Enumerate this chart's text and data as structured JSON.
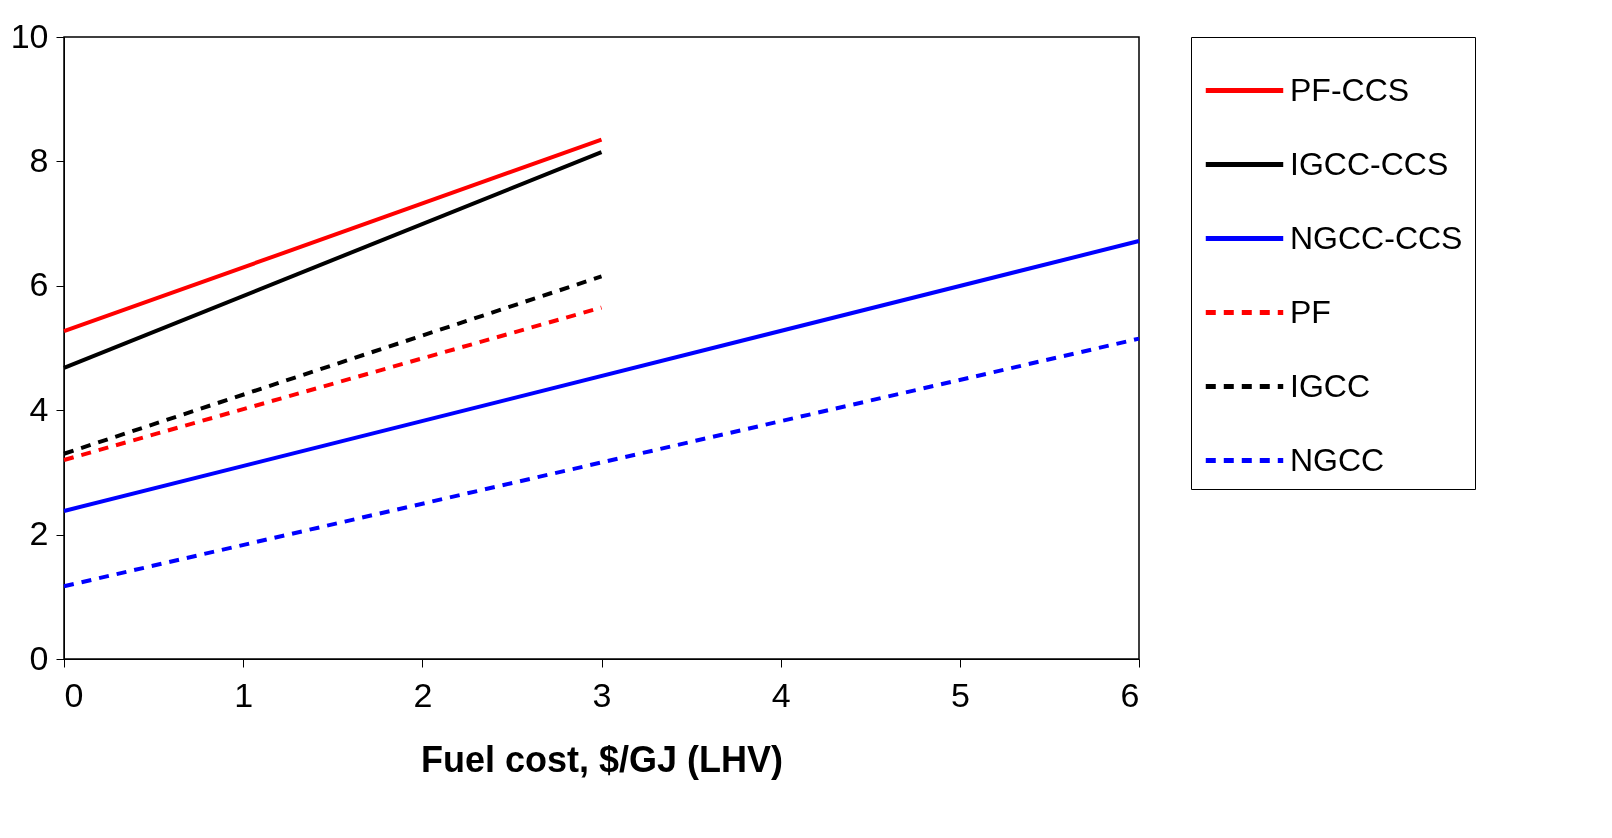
{
  "chart_data": {
    "type": "line",
    "xlabel": "Fuel cost, $/GJ (LHV)",
    "xlim": [
      0,
      6
    ],
    "xticks": [
      0,
      1,
      2,
      3,
      4,
      5,
      6
    ],
    "ylim": [
      0,
      10
    ],
    "yticks": [
      0,
      2,
      4,
      6,
      8,
      10
    ],
    "legend": "right",
    "grid": false,
    "series": [
      {
        "name": "PF-CCS",
        "color": "#ff0000",
        "line_style": "solid",
        "x": [
          0,
          3
        ],
        "values": [
          5.27,
          8.35
        ]
      },
      {
        "name": "IGCC-CCS",
        "color": "#000000",
        "line_style": "solid",
        "x": [
          0,
          3
        ],
        "values": [
          4.68,
          8.15
        ]
      },
      {
        "name": "NGCC-CCS",
        "color": "#0000ff",
        "line_style": "solid",
        "x": [
          0,
          6
        ],
        "values": [
          2.38,
          6.72
        ]
      },
      {
        "name": "PF",
        "color": "#ff0000",
        "line_style": "dashed",
        "x": [
          0,
          3
        ],
        "values": [
          3.2,
          5.65
        ]
      },
      {
        "name": "IGCC",
        "color": "#000000",
        "line_style": "dashed",
        "x": [
          0,
          3
        ],
        "values": [
          3.3,
          6.15
        ]
      },
      {
        "name": "NGCC",
        "color": "#0000ff",
        "line_style": "dashed",
        "x": [
          0,
          6
        ],
        "values": [
          1.17,
          5.15
        ]
      }
    ]
  }
}
